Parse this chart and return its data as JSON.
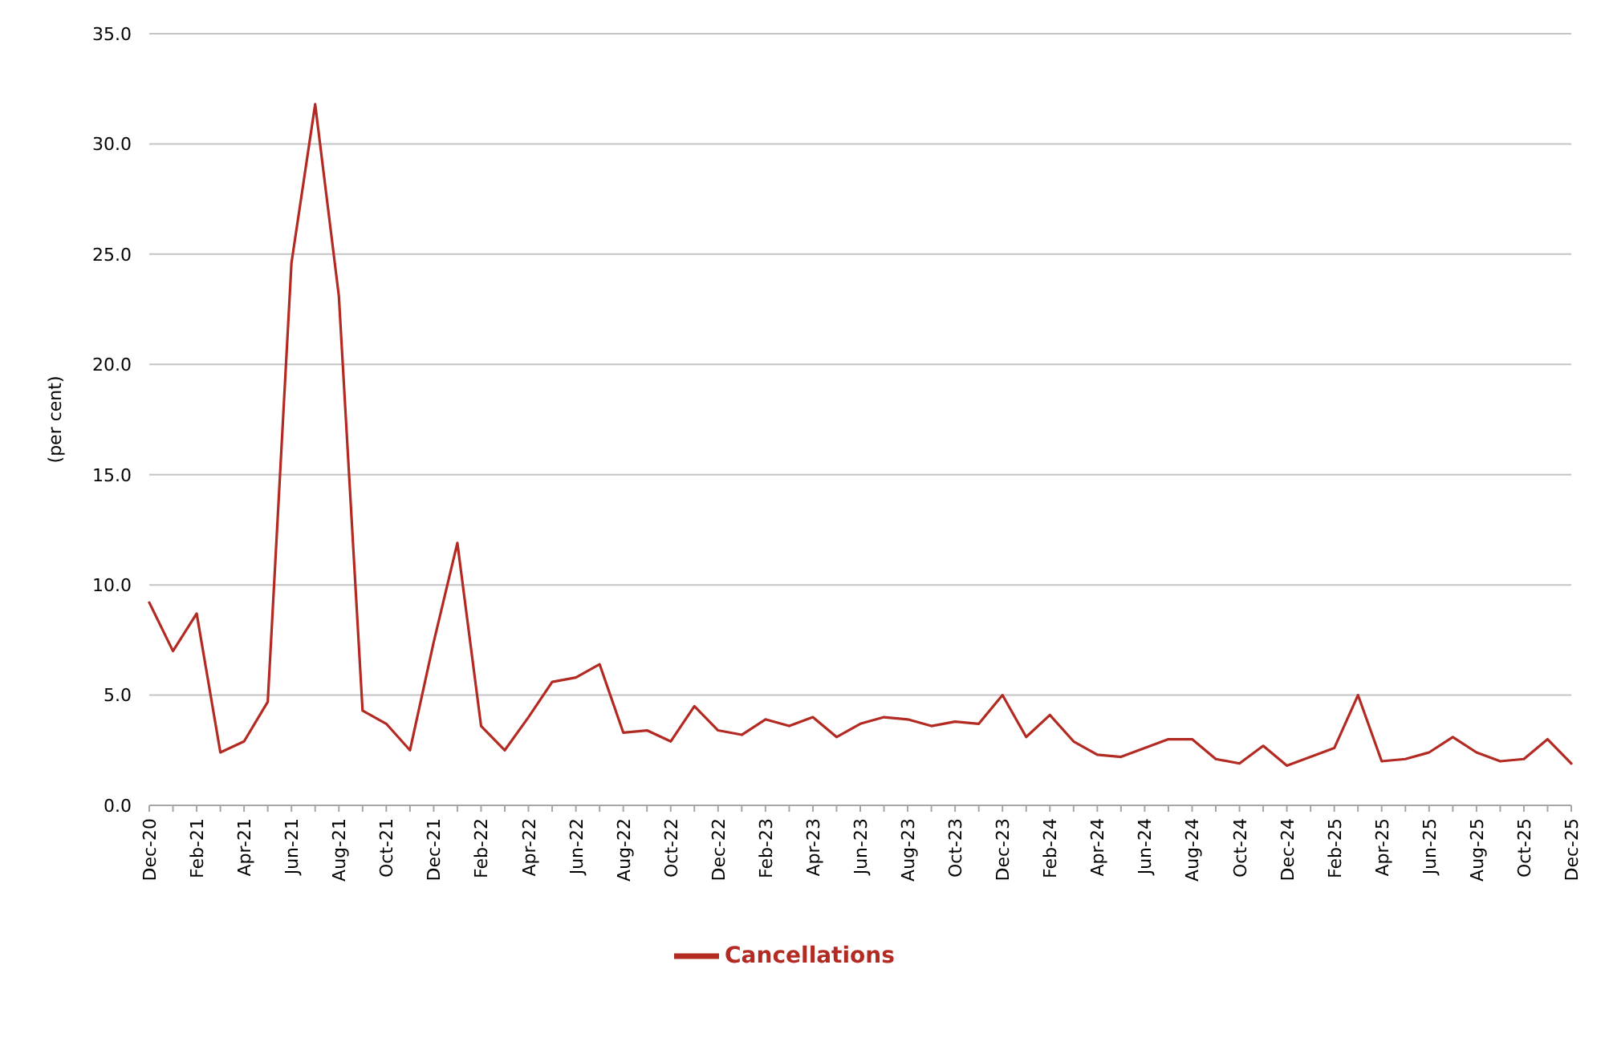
{
  "chart_data": {
    "type": "line",
    "ylabel": "(per cent)",
    "categories": [
      "Dec-20",
      null,
      "Feb-21",
      null,
      "Apr-21",
      null,
      "Jun-21",
      null,
      "Aug-21",
      null,
      "Oct-21",
      null,
      "Dec-21",
      null,
      "Feb-22",
      null,
      "Apr-22",
      null,
      "Jun-22",
      null,
      "Aug-22",
      null,
      "Oct-22",
      null,
      "Dec-22",
      null,
      "Feb-23",
      null,
      "Apr-23",
      null,
      "Jun-23",
      null,
      "Aug-23",
      null,
      "Oct-23",
      null,
      "Dec-23",
      null,
      "Feb-24",
      null,
      "Apr-24",
      null,
      "Jun-24",
      null,
      "Aug-24",
      null,
      "Oct-24",
      null,
      "Dec-24",
      null,
      "Feb-25",
      null,
      "Apr-25",
      null,
      "Jun-25",
      null,
      "Aug-25",
      null,
      "Oct-25",
      null,
      "Dec-25"
    ],
    "series": [
      {
        "name": "Cancellations",
        "color": "#b22a22",
        "values": [
          9.2,
          7.0,
          8.7,
          2.4,
          2.9,
          4.7,
          24.6,
          31.8,
          23.1,
          4.3,
          3.7,
          2.5,
          7.4,
          11.9,
          3.6,
          2.5,
          4.0,
          5.6,
          5.8,
          6.4,
          3.3,
          3.4,
          2.9,
          4.5,
          3.4,
          3.2,
          3.9,
          3.6,
          4.0,
          3.1,
          3.7,
          4.0,
          3.9,
          3.6,
          3.8,
          3.7,
          5.0,
          3.1,
          4.1,
          2.9,
          2.3,
          2.2,
          2.6,
          3.0,
          3.0,
          2.1,
          1.9,
          2.7,
          1.8,
          2.2,
          2.6,
          5.0,
          2.0,
          2.1,
          2.4,
          3.1,
          2.4,
          2.0,
          2.1,
          3.0,
          1.9
        ]
      }
    ],
    "ylim": [
      0,
      35
    ],
    "yticks": [
      {
        "value": 0,
        "label": "0.0"
      },
      {
        "value": 5,
        "label": "5.0"
      },
      {
        "value": 10,
        "label": "10.0"
      },
      {
        "value": 15,
        "label": "15.0"
      },
      {
        "value": 20,
        "label": "20.0"
      },
      {
        "value": 25,
        "label": "25.0"
      },
      {
        "value": 30,
        "label": "30.0"
      },
      {
        "value": 35,
        "label": "35.0"
      }
    ],
    "grid": "y",
    "legend": "bottom",
    "marker": "none",
    "line_style": "solid"
  }
}
